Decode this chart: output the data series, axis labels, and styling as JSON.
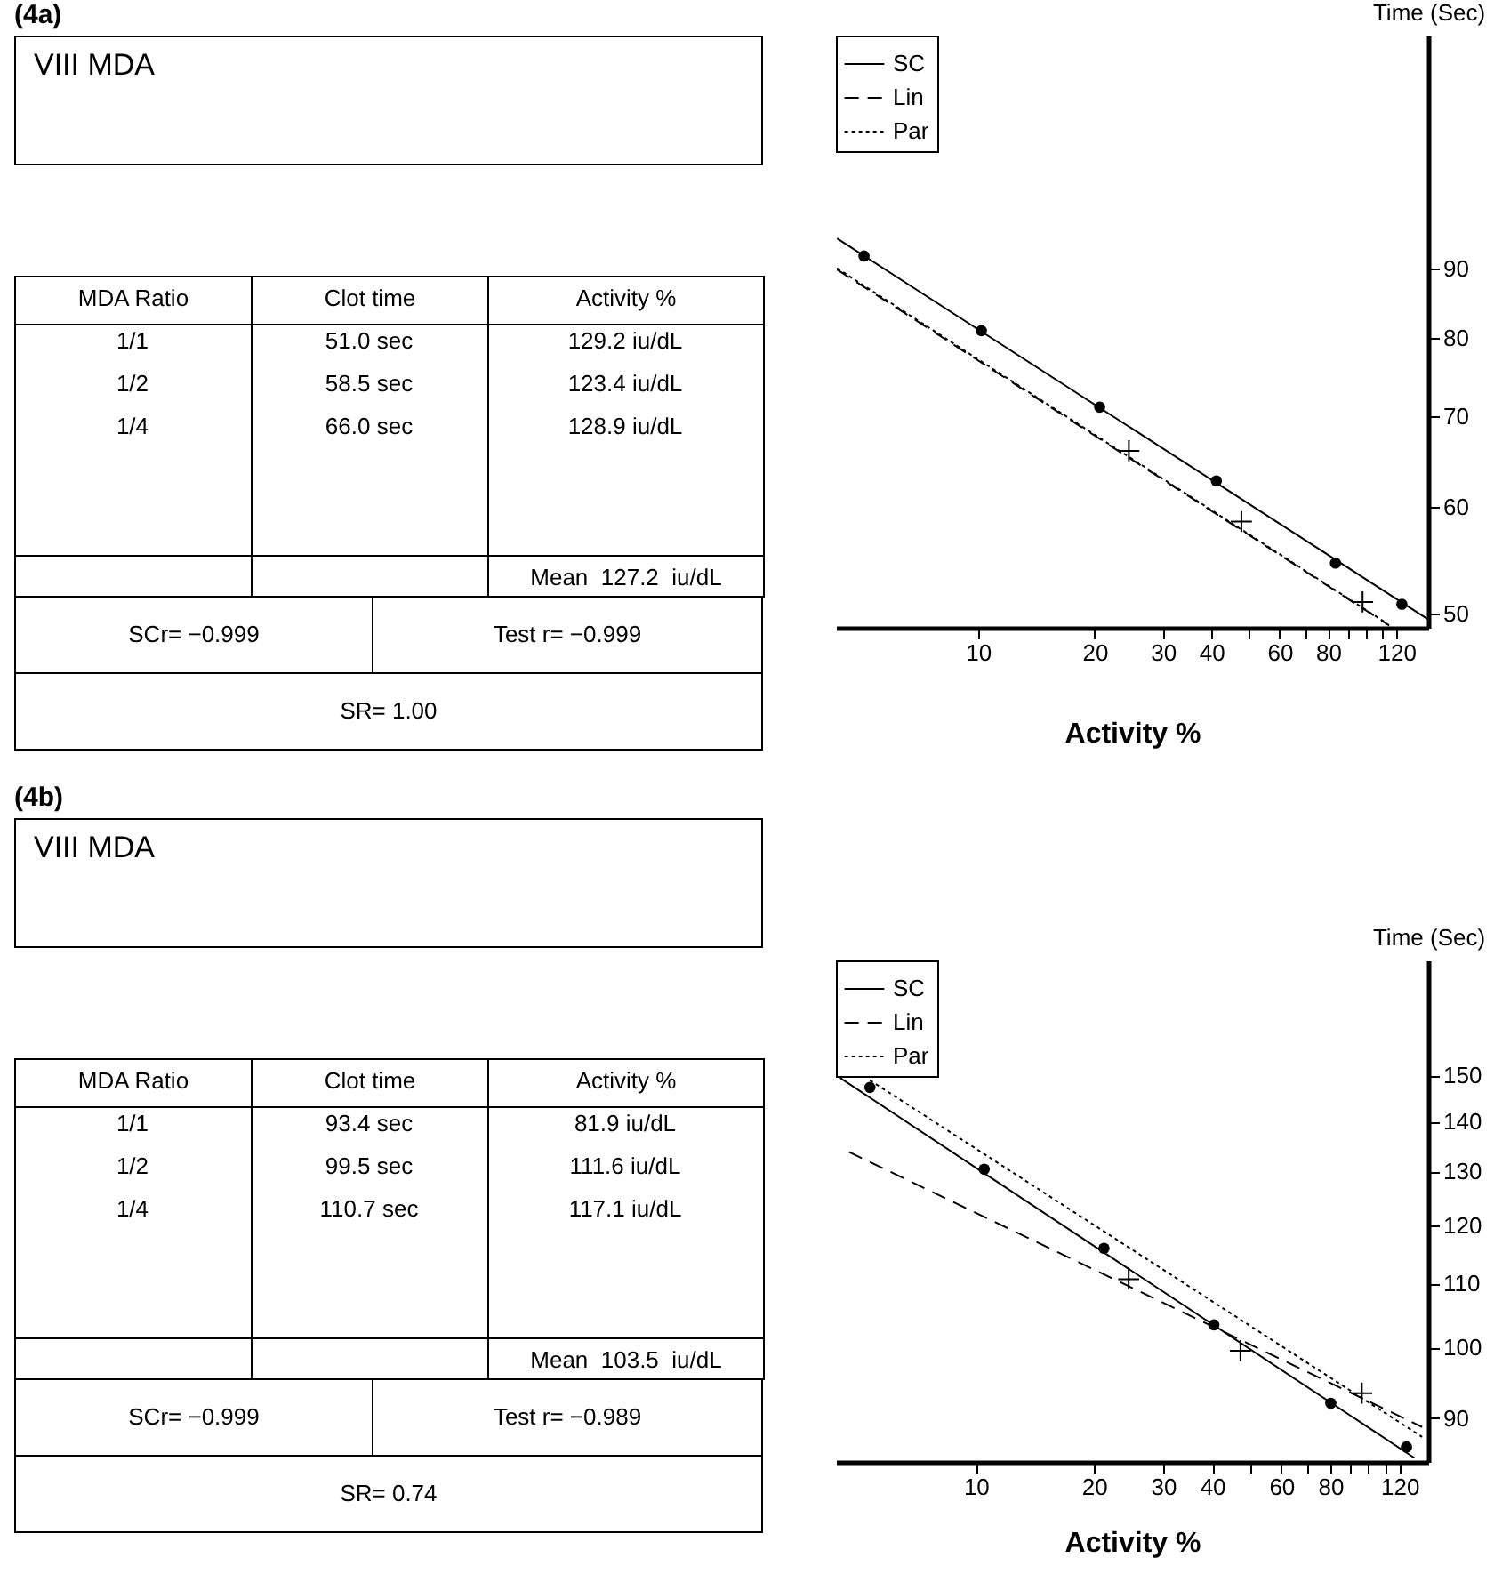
{
  "chart_data": [
    {
      "type": "other",
      "title": "(4a)",
      "annotations": [
        "VIII MDA",
        "MDA Ratio",
        "Clot time",
        "Activity %",
        "1/1",
        "51.0 sec",
        "129.2 iu/dL",
        "1/2",
        "58.5 sec",
        "123.4 iu/dL",
        "1/4",
        "66.0 sec",
        "128.9 iu/dL",
        "Mean  127.2  iu/dL",
        "SCr= −0.999",
        "Test r= −0.999",
        "SR= 1.00"
      ]
    },
    {
      "type": "line",
      "xlabel": "Activity %",
      "ylabel": "Time (Sec)",
      "log": "xy",
      "xlim": [
        4.3,
        145
      ],
      "ylim": [
        48.8,
        134
      ],
      "xticks": [
        10,
        20,
        30,
        40,
        {
          "value": 50,
          "label": null
        },
        60,
        {
          "value": 70,
          "label": null
        },
        80,
        {
          "value": 90,
          "label": null
        },
        {
          "value": 100,
          "label": null
        },
        {
          "value": 110,
          "label": null
        },
        120
      ],
      "yticks": [
        50,
        60,
        70,
        80,
        90
      ],
      "legend": "top left",
      "series": [
        {
          "name": "SC",
          "type": "line",
          "line_style": "solid",
          "color": "#000000",
          "x": [
            4.33,
            145
          ],
          "values": [
            94.8,
            49.5
          ]
        },
        {
          "name": "Lin",
          "type": "line",
          "line_style": "dashed",
          "color": "#000000",
          "x": [
            4.33,
            115
          ],
          "values": [
            89.9,
            49.0
          ]
        },
        {
          "name": "Par",
          "type": "line",
          "line_style": "dotted",
          "color": "#000000",
          "x": [
            4.33,
            113
          ],
          "values": [
            90.1,
            49.2
          ]
        },
        {
          "type": "scatter",
          "marker": "circle",
          "color": "#000000",
          "x": [
            5.08,
            10.2,
            20.6,
            41.2,
            83.6,
            124
          ],
          "values": [
            92.0,
            81.0,
            71.1,
            62.7,
            54.5,
            50.8
          ]
        },
        {
          "type": "scatter",
          "marker": "cross",
          "color": "#000000",
          "x": [
            24.5,
            47.8,
            98.2
          ],
          "values": [
            66.0,
            58.5,
            51.0
          ]
        }
      ]
    },
    {
      "type": "other",
      "title": "(4b)",
      "annotations": [
        "VIII MDA",
        "MDA Ratio",
        "Clot time",
        "Activity %",
        "1/1",
        "93.4 sec",
        "81.9 iu/dL",
        "1/2",
        "99.5 sec",
        "111.6 iu/dL",
        "1/4",
        "110.7 sec",
        "117.1 iu/dL",
        "Mean  103.5  iu/dL",
        "SCr= −0.999",
        "Test r= −0.989",
        "SR= 0.74"
      ]
    },
    {
      "type": "line",
      "xlabel": "Activity %",
      "ylabel": "Time (Sec)",
      "log": "xy",
      "xlim": [
        4.4,
        142
      ],
      "ylim": [
        84.3,
        178
      ],
      "xticks": [
        10,
        20,
        30,
        40,
        {
          "value": 50,
          "label": null
        },
        60,
        {
          "value": 70,
          "label": null
        },
        80,
        {
          "value": 90,
          "label": null
        },
        {
          "value": 100,
          "label": null
        },
        {
          "value": 110,
          "label": null
        },
        120
      ],
      "yticks": [
        90,
        100,
        110,
        120,
        130,
        140,
        150
      ],
      "legend": "top left",
      "series": [
        {
          "name": "SC",
          "type": "line",
          "line_style": "solid",
          "color": "#000000",
          "x": [
            4.51,
            131
          ],
          "values": [
            149.4,
            84.8
          ]
        },
        {
          "name": "Lin",
          "type": "line",
          "line_style": "dashed",
          "color": "#000000",
          "x": [
            4.75,
            137
          ],
          "values": [
            133.8,
            88.8
          ]
        },
        {
          "name": "Par",
          "type": "line",
          "line_style": "dotted",
          "color": "#000000",
          "x": [
            5.37,
            137
          ],
          "values": [
            148.9,
            87.5
          ]
        },
        {
          "type": "scatter",
          "marker": "circle",
          "color": "#000000",
          "x": [
            5.37,
            10.5,
            21.2,
            40.4,
            80.2,
            125
          ],
          "values": [
            147.3,
            130.4,
            115.9,
            103.4,
            92.0,
            86.2
          ]
        },
        {
          "type": "scatter",
          "marker": "cross",
          "color": "#000000",
          "x": [
            24.5,
            47.2,
            96.2
          ],
          "values": [
            110.7,
            99.5,
            93.4
          ]
        }
      ]
    }
  ]
}
